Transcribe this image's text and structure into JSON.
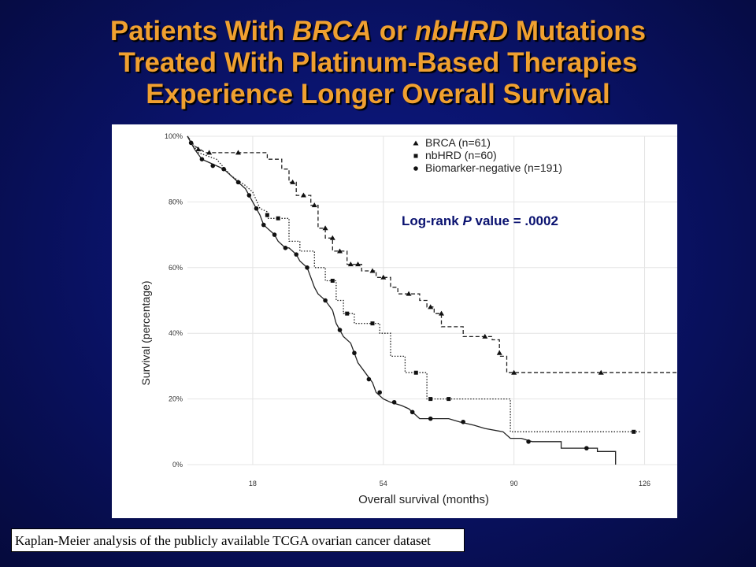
{
  "slide": {
    "title_line1_a": "Patients With ",
    "title_line1_b": "BRCA",
    "title_line1_c": " or ",
    "title_line1_d": "nbHRD",
    "title_line1_e": " Mutations",
    "title_line2": "Treated With Platinum-Based Therapies",
    "title_line3": "Experience Longer Overall Survival",
    "caption": "Kaplan-Meier analysis of the publicly available TCGA ovarian cancer dataset"
  },
  "chart_data": {
    "type": "line",
    "subtype": "kaplan-meier step curve",
    "xlabel": "Overall survival (months)",
    "ylabel": "Survival (percentage)",
    "xlim": [
      0,
      135
    ],
    "ylim": [
      0,
      100
    ],
    "xticks": [
      18,
      54,
      90,
      126
    ],
    "yticks": [
      0,
      20,
      40,
      60,
      80,
      100
    ],
    "ytick_labels": [
      "0%",
      "20%",
      "40%",
      "60%",
      "80%",
      "100%"
    ],
    "grid": true,
    "legend_position": "top-right",
    "annotation_a": "Log-rank ",
    "annotation_b": "P",
    "annotation_c": " value = .0002",
    "series": [
      {
        "name": "BRCA (n=61)",
        "marker": "triangle",
        "dash": "5,3",
        "points": [
          [
            0,
            100
          ],
          [
            2,
            97
          ],
          [
            5,
            95
          ],
          [
            10,
            95
          ],
          [
            16,
            95
          ],
          [
            22,
            95
          ],
          [
            22,
            93
          ],
          [
            26,
            93
          ],
          [
            26,
            90
          ],
          [
            28,
            90
          ],
          [
            28,
            86
          ],
          [
            30,
            86
          ],
          [
            30,
            82
          ],
          [
            34,
            82
          ],
          [
            34,
            79
          ],
          [
            36,
            79
          ],
          [
            36,
            72
          ],
          [
            38,
            72
          ],
          [
            38,
            69
          ],
          [
            40,
            69
          ],
          [
            40,
            65
          ],
          [
            44,
            65
          ],
          [
            44,
            61
          ],
          [
            48,
            61
          ],
          [
            48,
            59
          ],
          [
            52,
            59
          ],
          [
            52,
            57
          ],
          [
            56,
            57
          ],
          [
            56,
            54
          ],
          [
            58,
            54
          ],
          [
            58,
            52
          ],
          [
            64,
            52
          ],
          [
            64,
            50
          ],
          [
            66,
            50
          ],
          [
            66,
            48
          ],
          [
            68,
            48
          ],
          [
            68,
            46
          ],
          [
            70,
            46
          ],
          [
            70,
            42
          ],
          [
            76,
            42
          ],
          [
            76,
            39
          ],
          [
            84,
            39
          ],
          [
            84,
            38
          ],
          [
            86,
            38
          ],
          [
            86,
            33
          ],
          [
            88,
            33
          ],
          [
            88,
            28
          ],
          [
            135,
            28
          ]
        ],
        "censor_marks": [
          [
            3,
            96
          ],
          [
            6,
            95
          ],
          [
            14,
            95
          ],
          [
            29,
            86
          ],
          [
            32,
            82
          ],
          [
            35,
            79
          ],
          [
            38,
            72
          ],
          [
            40,
            69
          ],
          [
            42,
            65
          ],
          [
            45,
            61
          ],
          [
            47,
            61
          ],
          [
            51,
            59
          ],
          [
            54,
            57
          ],
          [
            61,
            52
          ],
          [
            67,
            48
          ],
          [
            70,
            46
          ],
          [
            82,
            39
          ],
          [
            86,
            34
          ],
          [
            90,
            28
          ],
          [
            114,
            28
          ]
        ]
      },
      {
        "name": "nbHRD (n=60)",
        "marker": "square",
        "dash": "1.5,2",
        "points": [
          [
            0,
            100
          ],
          [
            3,
            95
          ],
          [
            8,
            93
          ],
          [
            12,
            88
          ],
          [
            16,
            85
          ],
          [
            18,
            83
          ],
          [
            20,
            78
          ],
          [
            22,
            77
          ],
          [
            22,
            75
          ],
          [
            28,
            75
          ],
          [
            28,
            68
          ],
          [
            31,
            68
          ],
          [
            31,
            65
          ],
          [
            35,
            65
          ],
          [
            35,
            60
          ],
          [
            38,
            60
          ],
          [
            38,
            56
          ],
          [
            41,
            56
          ],
          [
            41,
            50
          ],
          [
            43,
            50
          ],
          [
            43,
            46
          ],
          [
            46,
            46
          ],
          [
            46,
            43
          ],
          [
            53,
            43
          ],
          [
            53,
            40
          ],
          [
            56,
            40
          ],
          [
            56,
            33
          ],
          [
            60,
            33
          ],
          [
            60,
            28
          ],
          [
            66,
            28
          ],
          [
            66,
            20
          ],
          [
            77,
            20
          ],
          [
            77,
            20
          ],
          [
            89,
            20
          ],
          [
            89,
            10
          ],
          [
            125,
            10
          ]
        ],
        "censor_marks": [
          [
            22,
            76
          ],
          [
            25,
            75
          ],
          [
            40,
            56
          ],
          [
            44,
            46
          ],
          [
            51,
            43
          ],
          [
            63,
            28
          ],
          [
            67,
            20
          ],
          [
            72,
            20
          ],
          [
            123,
            10
          ]
        ]
      },
      {
        "name": "Biomarker-negative (n=191)",
        "marker": "circle",
        "dash": "",
        "points": [
          [
            0,
            100
          ],
          [
            2,
            96
          ],
          [
            4,
            93
          ],
          [
            6,
            92
          ],
          [
            8,
            91
          ],
          [
            10,
            90
          ],
          [
            12,
            88
          ],
          [
            14,
            86
          ],
          [
            16,
            84
          ],
          [
            17,
            82
          ],
          [
            18,
            80
          ],
          [
            19,
            78
          ],
          [
            20,
            76
          ],
          [
            21,
            73
          ],
          [
            22,
            72
          ],
          [
            23,
            71
          ],
          [
            24,
            70
          ],
          [
            25,
            68
          ],
          [
            26,
            67
          ],
          [
            27,
            66
          ],
          [
            28,
            66
          ],
          [
            29,
            65
          ],
          [
            30,
            64
          ],
          [
            31,
            62
          ],
          [
            33,
            60
          ],
          [
            34,
            57
          ],
          [
            35,
            54
          ],
          [
            36,
            52
          ],
          [
            37,
            51
          ],
          [
            38,
            50
          ],
          [
            40,
            47
          ],
          [
            41,
            43
          ],
          [
            42,
            41
          ],
          [
            43,
            39
          ],
          [
            45,
            37
          ],
          [
            46,
            34
          ],
          [
            47,
            31
          ],
          [
            49,
            28
          ],
          [
            51,
            25
          ],
          [
            52,
            22
          ],
          [
            54,
            20
          ],
          [
            56,
            19
          ],
          [
            59,
            18
          ],
          [
            61,
            17
          ],
          [
            63,
            15
          ],
          [
            64,
            14
          ],
          [
            68,
            14
          ],
          [
            72,
            14
          ],
          [
            75,
            13
          ],
          [
            79,
            12
          ],
          [
            82,
            11
          ],
          [
            87,
            10
          ],
          [
            89,
            8
          ],
          [
            92,
            8
          ],
          [
            95,
            7
          ],
          [
            103,
            7
          ],
          [
            103,
            5
          ],
          [
            113,
            5
          ],
          [
            113,
            4
          ],
          [
            118,
            4
          ],
          [
            118,
            0
          ]
        ]
      }
    ],
    "censor_marks_negative": [
      [
        1,
        98
      ],
      [
        4,
        93
      ],
      [
        7,
        91
      ],
      [
        10,
        90
      ],
      [
        14,
        86
      ],
      [
        17,
        82
      ],
      [
        19,
        78
      ],
      [
        21,
        73
      ],
      [
        24,
        70
      ],
      [
        27,
        66
      ],
      [
        30,
        64
      ],
      [
        33,
        60
      ],
      [
        38,
        50
      ],
      [
        42,
        41
      ],
      [
        46,
        34
      ],
      [
        50,
        26
      ],
      [
        53,
        22
      ],
      [
        57,
        19
      ],
      [
        62,
        16
      ],
      [
        67,
        14
      ],
      [
        76,
        13
      ],
      [
        94,
        7
      ],
      [
        110,
        5
      ]
    ]
  }
}
